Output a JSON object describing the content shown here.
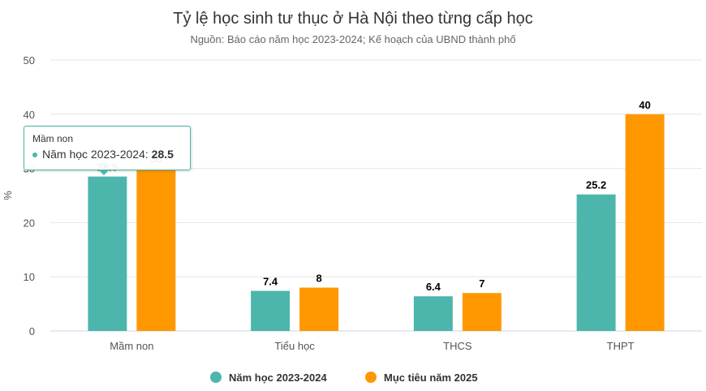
{
  "chart_data": {
    "type": "bar",
    "title": "Tỷ lệ học sinh tư thục ở Hà Nội theo từng cấp học",
    "subtitle": "Nguồn: Báo cáo năm học 2023-2024; Kế hoạch của UBND thành phố",
    "ylabel": "%",
    "xlabel": "",
    "ylim": [
      0,
      50
    ],
    "yticks": [
      0,
      10,
      20,
      30,
      40,
      50
    ],
    "categories": [
      "Mầm non",
      "Tiểu học",
      "THCS",
      "THPT"
    ],
    "series": [
      {
        "name": "Năm học 2023-2024",
        "values": [
          28.5,
          7.4,
          6.4,
          25.2
        ],
        "color": "#4db6ac",
        "labels": [
          "28.5",
          "7.4",
          "6.4",
          "25.2"
        ]
      },
      {
        "name": "Mục tiêu năm 2025",
        "values": [
          30,
          8,
          7,
          40
        ],
        "color": "#ff9800",
        "labels": [
          "30",
          "8",
          "7",
          "40"
        ]
      }
    ],
    "grid": true,
    "legend_position": "bottom-center"
  },
  "tooltip": {
    "category": "Mầm non",
    "series_name": "Năm học 2023-2024",
    "value": "28.5",
    "color": "#4db6ac"
  }
}
